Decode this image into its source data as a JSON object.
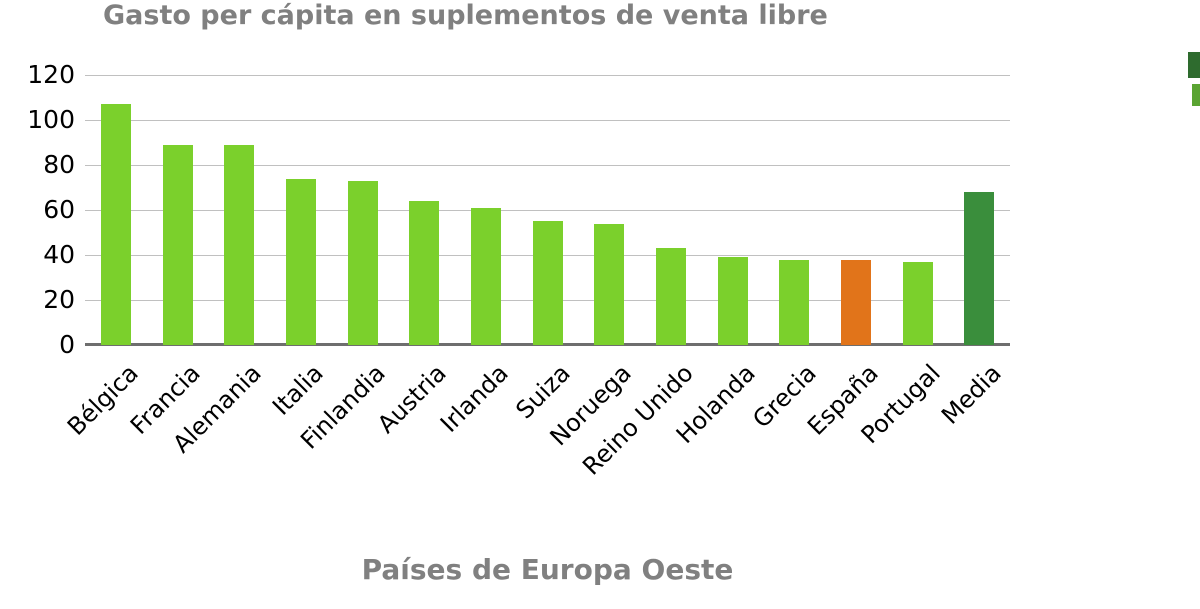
{
  "chart_data": {
    "type": "bar",
    "title": "Gasto per cápita en suplementos de venta libre",
    "xlabel": "Países de Europa Oeste",
    "ylabel": "",
    "ylim": [
      0,
      120
    ],
    "yticks": [
      0,
      20,
      40,
      60,
      80,
      100,
      120
    ],
    "grid": true,
    "legend_position": "none",
    "categories": [
      "Bélgica",
      "Francia",
      "Alemania",
      "Italia",
      "Finlandia",
      "Austria",
      "Irlanda",
      "Suiza",
      "Noruega",
      "Reino Unido",
      "Holanda",
      "Grecia",
      "España",
      "Portugal",
      "Media"
    ],
    "values": [
      107,
      89,
      89,
      74,
      73,
      64,
      61,
      55,
      54,
      43,
      39,
      38,
      38,
      37,
      68
    ],
    "bar_colors": [
      "#7bd02c",
      "#7bd02c",
      "#7bd02c",
      "#7bd02c",
      "#7bd02c",
      "#7bd02c",
      "#7bd02c",
      "#7bd02c",
      "#7bd02c",
      "#7bd02c",
      "#7bd02c",
      "#7bd02c",
      "#e1741a",
      "#7bd02c",
      "#3a8e3c"
    ]
  },
  "colors": {
    "bar_default": "#7bd02c",
    "bar_espana": "#e1741a",
    "bar_media": "#3a8e3c",
    "title_text": "#808080",
    "axis_title_text": "#808080",
    "tick_text": "#000000",
    "gridline": "#c0c0c0",
    "axis_line": "#6e6e6e",
    "legend_fragment_top": "#2e6b2e",
    "legend_fragment_bottom": "#5aa432"
  }
}
